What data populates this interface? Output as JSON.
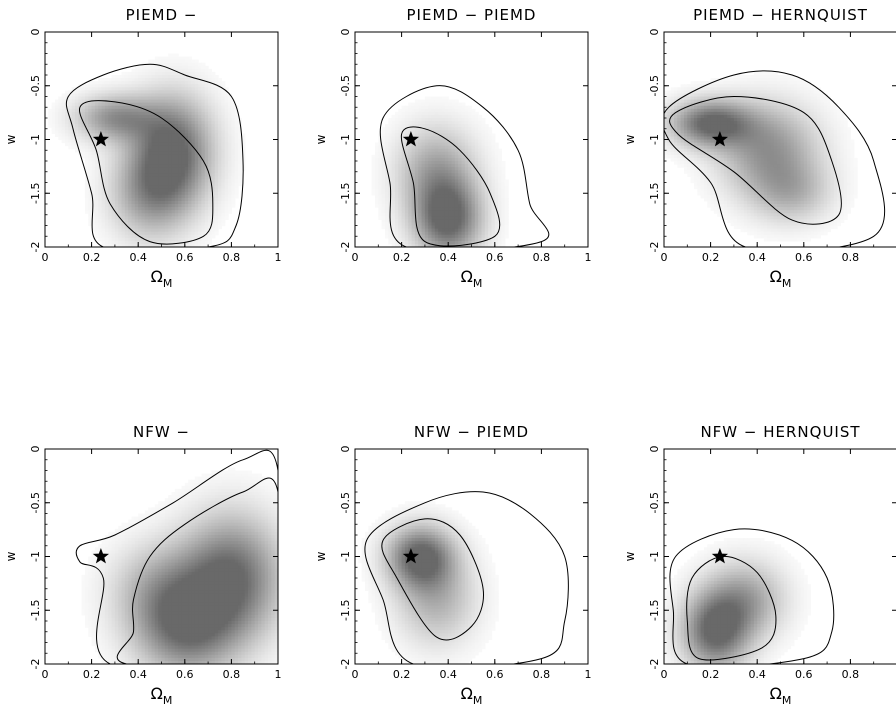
{
  "chart_data": [
    {
      "type": "heatmap",
      "title": "PIEMD −",
      "xlabel": "Ω_M",
      "ylabel": "w",
      "xlim": [
        0,
        1
      ],
      "ylim": [
        -2,
        0
      ],
      "xticks": [
        "0",
        "0.2",
        "0.4",
        "0.6",
        "0.8",
        "1"
      ],
      "yticks": [
        "0",
        "-0.5",
        "-1",
        "-1.5",
        "-2"
      ],
      "marker": {
        "symbol": "star",
        "x": 0.24,
        "y": -1
      },
      "density_peaks": [
        {
          "x": 0.55,
          "y": -1.1,
          "weight": 1.0,
          "sx": 0.12,
          "sy": 0.35
        },
        {
          "x": 0.3,
          "y": -0.8,
          "weight": 0.7,
          "sx": 0.12,
          "sy": 0.15
        },
        {
          "x": 0.45,
          "y": -1.5,
          "weight": 0.6,
          "sx": 0.12,
          "sy": 0.3
        }
      ],
      "contours": [
        [
          [
            0.1,
            -0.6
          ],
          [
            0.25,
            -0.4
          ],
          [
            0.45,
            -0.3
          ],
          [
            0.6,
            -0.4
          ],
          [
            0.8,
            -0.6
          ],
          [
            0.85,
            -1.2
          ],
          [
            0.82,
            -1.8
          ],
          [
            0.7,
            -2
          ],
          [
            0.25,
            -2
          ],
          [
            0.2,
            -1.5
          ],
          [
            0.12,
            -0.9
          ]
        ],
        [
          [
            0.15,
            -0.7
          ],
          [
            0.3,
            -0.65
          ],
          [
            0.5,
            -0.8
          ],
          [
            0.68,
            -1.2
          ],
          [
            0.72,
            -1.6
          ],
          [
            0.68,
            -1.9
          ],
          [
            0.45,
            -1.95
          ],
          [
            0.28,
            -1.6
          ],
          [
            0.22,
            -1.1
          ]
        ]
      ]
    },
    {
      "type": "heatmap",
      "title": "PIEMD − PIEMD",
      "xlabel": "Ω_M",
      "ylabel": "w",
      "xlim": [
        0,
        1
      ],
      "ylim": [
        -2,
        0
      ],
      "xticks": [
        "0",
        "0.2",
        "0.4",
        "0.6",
        "0.8",
        "1"
      ],
      "yticks": [
        "0",
        "-0.5",
        "-1",
        "-1.5",
        "-2"
      ],
      "marker": {
        "symbol": "star",
        "x": 0.24,
        "y": -1
      },
      "density_peaks": [
        {
          "x": 0.4,
          "y": -1.75,
          "weight": 1.0,
          "sx": 0.1,
          "sy": 0.25
        },
        {
          "x": 0.35,
          "y": -1.3,
          "weight": 0.6,
          "sx": 0.12,
          "sy": 0.3
        }
      ],
      "contours": [
        [
          [
            0.12,
            -0.8
          ],
          [
            0.35,
            -0.5
          ],
          [
            0.55,
            -0.7
          ],
          [
            0.7,
            -1.1
          ],
          [
            0.75,
            -1.6
          ],
          [
            0.8,
            -1.95
          ],
          [
            0.22,
            -2
          ],
          [
            0.15,
            -1.4
          ]
        ],
        [
          [
            0.2,
            -0.95
          ],
          [
            0.3,
            -0.9
          ],
          [
            0.45,
            -1.1
          ],
          [
            0.58,
            -1.5
          ],
          [
            0.6,
            -1.9
          ],
          [
            0.3,
            -1.95
          ],
          [
            0.25,
            -1.4
          ]
        ]
      ]
    },
    {
      "type": "heatmap",
      "title": "PIEMD − HERNQUIST",
      "xlabel": "Ω_M",
      "ylabel": "w",
      "xlim": [
        0,
        1
      ],
      "ylim": [
        -2,
        0
      ],
      "xticks": [
        "0",
        "0.2",
        "0.4",
        "0.6",
        "0.8"
      ],
      "yticks": [
        "0",
        "-0.5",
        "-1",
        "-1.5",
        "-2"
      ],
      "marker": {
        "symbol": "star",
        "x": 0.24,
        "y": -1
      },
      "density_peaks": [
        {
          "x": 0.2,
          "y": -0.85,
          "weight": 1.0,
          "sx": 0.12,
          "sy": 0.15
        },
        {
          "x": 0.45,
          "y": -1.1,
          "weight": 0.7,
          "sx": 0.15,
          "sy": 0.3
        },
        {
          "x": 0.55,
          "y": -1.5,
          "weight": 0.4,
          "sx": 0.12,
          "sy": 0.2
        }
      ],
      "contours": [
        [
          [
            0.02,
            -0.7
          ],
          [
            0.3,
            -0.4
          ],
          [
            0.55,
            -0.4
          ],
          [
            0.75,
            -0.7
          ],
          [
            0.9,
            -1.2
          ],
          [
            0.9,
            -1.9
          ],
          [
            0.35,
            -2
          ],
          [
            0.2,
            -1.4
          ],
          [
            0.02,
            -1.0
          ]
        ],
        [
          [
            0.05,
            -0.75
          ],
          [
            0.3,
            -0.6
          ],
          [
            0.6,
            -0.75
          ],
          [
            0.72,
            -1.2
          ],
          [
            0.75,
            -1.7
          ],
          [
            0.55,
            -1.75
          ],
          [
            0.3,
            -1.3
          ],
          [
            0.06,
            -0.95
          ]
        ]
      ]
    },
    {
      "type": "heatmap",
      "title": "NFW −",
      "xlabel": "Ω_M",
      "ylabel": "w",
      "xlim": [
        0,
        1
      ],
      "ylim": [
        -2,
        0
      ],
      "xticks": [
        "0",
        "0.2",
        "0.4",
        "0.6",
        "0.8",
        "1"
      ],
      "yticks": [
        "0",
        "-0.5",
        "-1",
        "-1.5",
        "-2"
      ],
      "marker": {
        "symbol": "star",
        "x": 0.24,
        "y": -1
      },
      "density_peaks": [
        {
          "x": 0.8,
          "y": -1.2,
          "weight": 1.0,
          "sx": 0.15,
          "sy": 0.4
        },
        {
          "x": 0.6,
          "y": -1.7,
          "weight": 0.8,
          "sx": 0.15,
          "sy": 0.3
        },
        {
          "x": 0.5,
          "y": -1.3,
          "weight": 0.5,
          "sx": 0.15,
          "sy": 0.3
        }
      ],
      "contours": [
        [
          [
            0.15,
            -0.9
          ],
          [
            0.3,
            -0.8
          ],
          [
            0.55,
            -0.5
          ],
          [
            0.85,
            -0.1
          ],
          [
            1,
            -0.2
          ],
          [
            1,
            -2
          ],
          [
            0.28,
            -2
          ],
          [
            0.25,
            -1.2
          ],
          [
            0.15,
            -1.05
          ]
        ],
        [
          [
            0.38,
            -1.4
          ],
          [
            0.45,
            -1.0
          ],
          [
            0.6,
            -0.7
          ],
          [
            0.85,
            -0.4
          ],
          [
            1,
            -0.4
          ],
          [
            1,
            -2
          ],
          [
            0.35,
            -2
          ],
          [
            0.38,
            -1.7
          ]
        ]
      ]
    },
    {
      "type": "heatmap",
      "title": "NFW − PIEMD",
      "xlabel": "Ω_M",
      "ylabel": "w",
      "xlim": [
        0,
        1
      ],
      "ylim": [
        -2,
        0
      ],
      "xticks": [
        "0",
        "0.2",
        "0.4",
        "0.6",
        "0.8",
        "1"
      ],
      "yticks": [
        "0",
        "-0.5",
        "-1",
        "-1.5",
        "-2"
      ],
      "marker": {
        "symbol": "star",
        "x": 0.24,
        "y": -1
      },
      "density_peaks": [
        {
          "x": 0.28,
          "y": -1.0,
          "weight": 1.0,
          "sx": 0.1,
          "sy": 0.2
        },
        {
          "x": 0.35,
          "y": -1.4,
          "weight": 0.5,
          "sx": 0.12,
          "sy": 0.3
        }
      ],
      "contours": [
        [
          [
            0.05,
            -0.85
          ],
          [
            0.3,
            -0.5
          ],
          [
            0.55,
            -0.4
          ],
          [
            0.75,
            -0.6
          ],
          [
            0.9,
            -1.0
          ],
          [
            0.9,
            -1.6
          ],
          [
            0.8,
            -1.95
          ],
          [
            0.25,
            -2
          ],
          [
            0.12,
            -1.4
          ]
        ],
        [
          [
            0.12,
            -0.85
          ],
          [
            0.3,
            -0.65
          ],
          [
            0.45,
            -0.8
          ],
          [
            0.55,
            -1.3
          ],
          [
            0.5,
            -1.65
          ],
          [
            0.35,
            -1.75
          ],
          [
            0.18,
            -1.2
          ]
        ]
      ]
    },
    {
      "type": "heatmap",
      "title": "NFW − HERNQUIST",
      "xlabel": "Ω_M",
      "ylabel": "w",
      "xlim": [
        0,
        1
      ],
      "ylim": [
        -2,
        0
      ],
      "xticks": [
        "0",
        "0.2",
        "0.4",
        "0.6",
        "0.8"
      ],
      "yticks": [
        "0",
        "-0.5",
        "-1",
        "-1.5",
        "-2"
      ],
      "marker": {
        "symbol": "star",
        "x": 0.24,
        "y": -1
      },
      "density_peaks": [
        {
          "x": 0.22,
          "y": -1.7,
          "weight": 1.0,
          "sx": 0.1,
          "sy": 0.25
        },
        {
          "x": 0.35,
          "y": -1.4,
          "weight": 0.6,
          "sx": 0.12,
          "sy": 0.25
        }
      ],
      "contours": [
        [
          [
            0.05,
            -1.0
          ],
          [
            0.3,
            -0.75
          ],
          [
            0.55,
            -0.85
          ],
          [
            0.7,
            -1.2
          ],
          [
            0.72,
            -1.7
          ],
          [
            0.6,
            -1.95
          ],
          [
            0.1,
            -2
          ],
          [
            0.04,
            -1.5
          ]
        ],
        [
          [
            0.12,
            -1.2
          ],
          [
            0.25,
            -1.0
          ],
          [
            0.4,
            -1.15
          ],
          [
            0.48,
            -1.55
          ],
          [
            0.42,
            -1.85
          ],
          [
            0.15,
            -1.95
          ],
          [
            0.1,
            -1.6
          ]
        ]
      ]
    }
  ]
}
